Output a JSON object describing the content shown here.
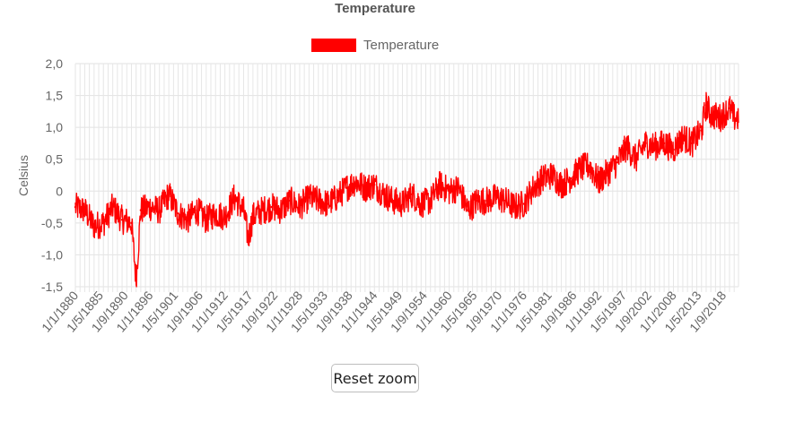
{
  "chart_data": {
    "type": "line",
    "title": "Temperature",
    "xlabel": "",
    "ylabel": "Celsius",
    "ylim": [
      -1.5,
      2.0
    ],
    "y_ticks": [
      "2,0",
      "1,5",
      "1,0",
      "0,5",
      "0",
      "-0,5",
      "-1,0",
      "-1,5"
    ],
    "x_tick_labels": [
      "1/1/1880",
      "1/5/1885",
      "1/9/1890",
      "1/1/1896",
      "1/5/1901",
      "1/9/1906",
      "1/1/1912",
      "1/5/1917",
      "1/9/1922",
      "1/1/1928",
      "1/5/1933",
      "1/9/1938",
      "1/1/1944",
      "1/5/1949",
      "1/9/1954",
      "1/1/1960",
      "1/5/1965",
      "1/9/1970",
      "1/1/1976",
      "1/5/1981",
      "1/9/1986",
      "1/1/1992",
      "1/5/1997",
      "1/9/2002",
      "1/1/2008",
      "1/5/2013",
      "1/9/2018"
    ],
    "x_range": [
      "1/1/1880",
      "1/12/2021"
    ],
    "grid": true,
    "legend_position": "top",
    "series": [
      {
        "name": "Temperature",
        "color": "#ff0000",
        "x": [
          1880,
          1882,
          1884,
          1886,
          1888,
          1890,
          1892,
          1893,
          1894,
          1896,
          1898,
          1900,
          1902,
          1904,
          1906,
          1908,
          1910,
          1912,
          1914,
          1916,
          1917,
          1918,
          1920,
          1922,
          1924,
          1926,
          1928,
          1930,
          1932,
          1934,
          1936,
          1938,
          1940,
          1942,
          1944,
          1946,
          1948,
          1950,
          1952,
          1954,
          1956,
          1958,
          1960,
          1962,
          1964,
          1966,
          1968,
          1970,
          1972,
          1974,
          1976,
          1978,
          1980,
          1982,
          1984,
          1986,
          1988,
          1990,
          1992,
          1994,
          1996,
          1998,
          2000,
          2002,
          2004,
          2006,
          2008,
          2010,
          2012,
          2014,
          2015,
          2016,
          2018,
          2020,
          2021
        ],
        "values": [
          -0.25,
          -0.3,
          -0.55,
          -0.5,
          -0.25,
          -0.45,
          -0.5,
          -1.4,
          -0.3,
          -0.25,
          -0.3,
          -0.05,
          -0.35,
          -0.45,
          -0.3,
          -0.45,
          -0.35,
          -0.4,
          -0.1,
          -0.3,
          -0.75,
          -0.4,
          -0.3,
          -0.25,
          -0.3,
          -0.15,
          -0.25,
          -0.1,
          -0.15,
          -0.2,
          -0.1,
          0.05,
          0.15,
          0.05,
          0.1,
          -0.05,
          -0.15,
          -0.2,
          -0.05,
          -0.2,
          -0.15,
          0.1,
          0.0,
          0.05,
          -0.3,
          -0.15,
          -0.15,
          -0.1,
          -0.15,
          -0.25,
          -0.2,
          0.05,
          0.2,
          0.25,
          0.1,
          0.2,
          0.35,
          0.4,
          0.15,
          0.3,
          0.45,
          0.7,
          0.5,
          0.75,
          0.7,
          0.75,
          0.65,
          0.85,
          0.75,
          0.95,
          1.35,
          1.2,
          1.15,
          1.3,
          1.15
        ]
      }
    ]
  },
  "controls": {
    "reset_zoom_label": "Reset zoom"
  }
}
